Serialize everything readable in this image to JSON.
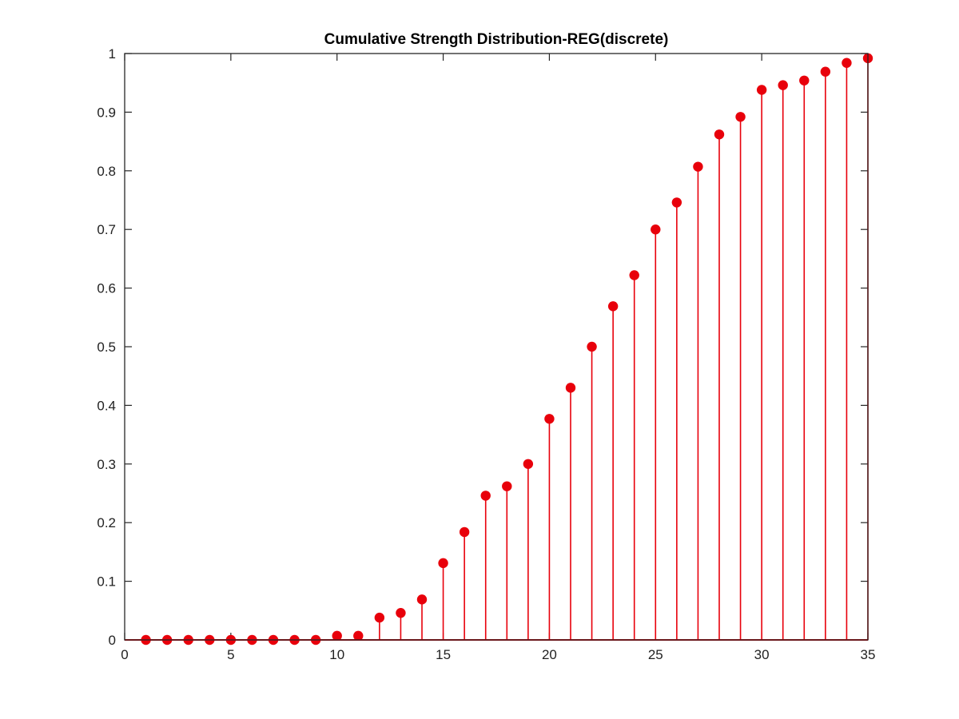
{
  "chart_data": {
    "type": "stem",
    "title": "Cumulative Strength Distribution-REG(discrete)",
    "xlabel": "",
    "ylabel": "",
    "xlim": [
      0,
      35
    ],
    "ylim": [
      0,
      1
    ],
    "xticks": [
      "0",
      "5",
      "10",
      "15",
      "20",
      "25",
      "30",
      "35"
    ],
    "yticks": [
      "0",
      "0.1",
      "0.2",
      "0.3",
      "0.4",
      "0.5",
      "0.6",
      "0.7",
      "0.8",
      "0.9",
      "1"
    ],
    "grid": false,
    "color": "#e8000b",
    "x": [
      1,
      2,
      3,
      4,
      5,
      6,
      7,
      8,
      9,
      10,
      11,
      12,
      13,
      14,
      15,
      16,
      17,
      18,
      19,
      20,
      21,
      22,
      23,
      24,
      25,
      26,
      27,
      28,
      29,
      30,
      31,
      32,
      33,
      34,
      35
    ],
    "y": [
      0,
      0,
      0,
      0,
      0,
      0,
      0,
      0,
      0,
      0.007,
      0.007,
      0.038,
      0.046,
      0.069,
      0.131,
      0.184,
      0.246,
      0.262,
      0.3,
      0.377,
      0.43,
      0.5,
      0.569,
      0.622,
      0.7,
      0.746,
      0.807,
      0.862,
      0.892,
      0.938,
      0.946,
      0.954,
      0.969,
      0.984,
      0.992
    ]
  }
}
